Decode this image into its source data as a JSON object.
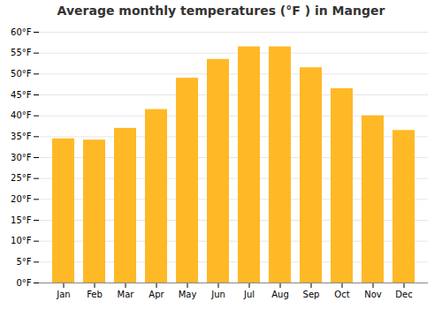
{
  "chart_data": {
    "type": "bar",
    "title": "Average monthly temperatures (°F ) in Manger",
    "categories": [
      "Jan",
      "Feb",
      "Mar",
      "Apr",
      "May",
      "Jun",
      "Jul",
      "Aug",
      "Sep",
      "Oct",
      "Nov",
      "Dec"
    ],
    "values": [
      34.5,
      34.2,
      37.0,
      41.5,
      49.0,
      53.5,
      56.5,
      56.5,
      51.5,
      46.5,
      40.0,
      36.5
    ],
    "color": "#ffb926",
    "ylim": [
      0,
      60
    ],
    "yticks": [
      {
        "value": 0,
        "label": "0°F"
      },
      {
        "value": 5,
        "label": "5°F"
      },
      {
        "value": 10,
        "label": "10°F"
      },
      {
        "value": 15,
        "label": "15°F"
      },
      {
        "value": 20,
        "label": "20°F"
      },
      {
        "value": 25,
        "label": "25°F"
      },
      {
        "value": 30,
        "label": "30°F"
      },
      {
        "value": 35,
        "label": "35°F"
      },
      {
        "value": 40,
        "label": "40°F"
      },
      {
        "value": 45,
        "label": "45°F"
      },
      {
        "value": 50,
        "label": "50°F"
      },
      {
        "value": 55,
        "label": "55°F"
      },
      {
        "value": 60,
        "label": "60°F"
      }
    ],
    "grid": true
  }
}
